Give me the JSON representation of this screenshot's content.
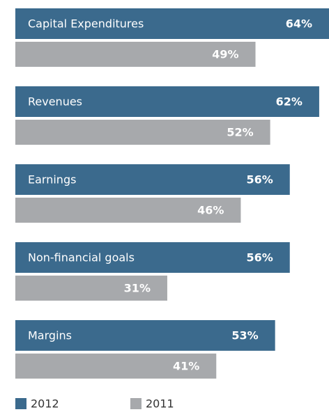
{
  "chart_data": {
    "type": "bar",
    "orientation": "horizontal",
    "categories": [
      "Capital Expenditures",
      "Revenues",
      "Earnings",
      "Non-financial goals",
      "Margins"
    ],
    "series": [
      {
        "name": "2012",
        "color": "#3b6a8d",
        "values": [
          64,
          62,
          56,
          56,
          53
        ],
        "value_labels": [
          "64%",
          "62%",
          "56%",
          "56%",
          "53%"
        ]
      },
      {
        "name": "2011",
        "color": "#a7a9ac",
        "values": [
          49,
          52,
          46,
          31,
          41
        ],
        "value_labels": [
          "49%",
          "52%",
          "46%",
          "31%",
          "41%"
        ]
      }
    ]
  }
}
